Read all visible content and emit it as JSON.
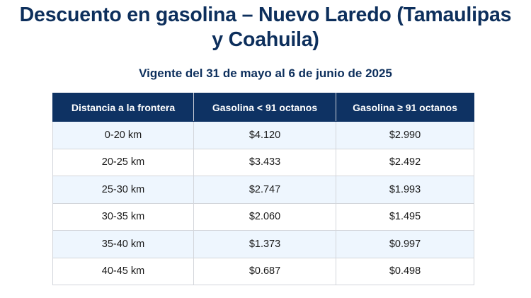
{
  "header": {
    "title_line1": "Descuento en gasolina – Nuevo Laredo (Tamaulipas",
    "title_line2": "y Coahuila)",
    "subtitle": "Vigente del 31 de mayo al 6 de junio de 2025"
  },
  "table": {
    "columns": [
      "Distancia a la frontera",
      "Gasolina < 91 octanos",
      "Gasolina ≥ 91 octanos"
    ],
    "rows": [
      {
        "distance": "0-20 km",
        "regular": "$4.120",
        "premium": "$2.990"
      },
      {
        "distance": "20-25 km",
        "regular": "$3.433",
        "premium": "$2.492"
      },
      {
        "distance": "25-30 km",
        "regular": "$2.747",
        "premium": "$1.993"
      },
      {
        "distance": "30-35 km",
        "regular": "$2.060",
        "premium": "$1.495"
      },
      {
        "distance": "35-40 km",
        "regular": "$1.373",
        "premium": "$0.997"
      },
      {
        "distance": "40-45 km",
        "regular": "$0.687",
        "premium": "$0.498"
      }
    ]
  },
  "colors": {
    "title": "#0d2f5c",
    "header_bg": "#0e3263",
    "header_text": "#ffffff",
    "row_alt_bg": "#eef6fe",
    "row_bg": "#ffffff",
    "border": "#d3d6db"
  }
}
